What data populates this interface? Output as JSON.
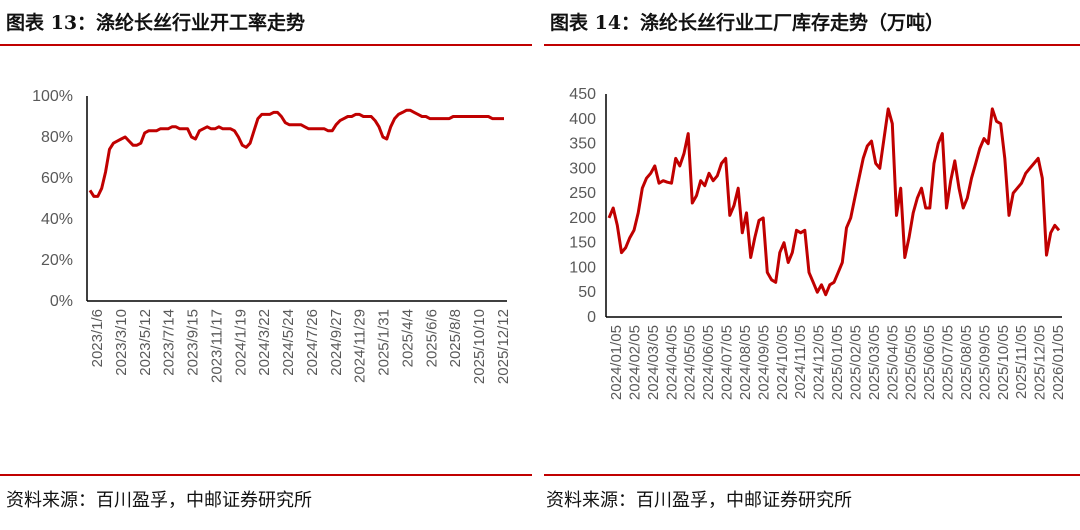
{
  "left": {
    "title": "图表 13：涤纶长丝行业开工率走势",
    "source": "资料来源：百川盈孚，中邮证券研究所"
  },
  "right": {
    "title": "图表 14：涤纶长丝行业工厂库存走势（万吨）",
    "source": "资料来源：百川盈孚，中邮证券研究所"
  },
  "colors": {
    "line": "#c00000",
    "axis": "#000000",
    "text": "#595959"
  },
  "chart_data": [
    {
      "type": "line",
      "title": "涤纶长丝行业开工率走势",
      "y_tick_labels": [
        "0%",
        "20%",
        "40%",
        "60%",
        "80%",
        "100%"
      ],
      "ylim": [
        0,
        100
      ],
      "x_tick_labels": [
        "2023/1/6",
        "2023/3/10",
        "2023/5/12",
        "2023/7/14",
        "2023/9/15",
        "2023/11/17",
        "2024/1/19",
        "2024/3/22",
        "2024/5/24",
        "2024/7/26",
        "2024/9/27",
        "2024/11/29",
        "2025/1/31",
        "2025/4/4",
        "2025/6/6",
        "2025/8/8",
        "2025/10/10",
        "2025/12/12"
      ],
      "series": [
        {
          "values": [
            54,
            51,
            51,
            55,
            63,
            74,
            77,
            78,
            79,
            80,
            78,
            76,
            76,
            77,
            82,
            83,
            83,
            83,
            84,
            84,
            84,
            85,
            85,
            84,
            84,
            84,
            80,
            79,
            83,
            84,
            85,
            84,
            84,
            85,
            84,
            84,
            84,
            83,
            80,
            76,
            75,
            77,
            83,
            89,
            91,
            91,
            91,
            92,
            92,
            90,
            87,
            86,
            86,
            86,
            86,
            85,
            84,
            84,
            84,
            84,
            84,
            83,
            83,
            86,
            88,
            89,
            90,
            90,
            91,
            91,
            90,
            90,
            90,
            88,
            85,
            80,
            79,
            85,
            89,
            91,
            92,
            93,
            93,
            92,
            91,
            90,
            90,
            89,
            89,
            89,
            89,
            89,
            89,
            90,
            90,
            90,
            90,
            90,
            90,
            90,
            90,
            90,
            90,
            89,
            89,
            89,
            89
          ]
        }
      ]
    },
    {
      "type": "line",
      "title": "涤纶长丝行业工厂库存走势（万吨）",
      "y_tick_labels": [
        "0",
        "50",
        "100",
        "150",
        "200",
        "250",
        "300",
        "350",
        "400",
        "450"
      ],
      "ylim": [
        0,
        450
      ],
      "x_tick_labels": [
        "2024/01/05",
        "2024/02/05",
        "2024/03/05",
        "2024/04/05",
        "2024/05/05",
        "2024/06/05",
        "2024/07/05",
        "2024/08/05",
        "2024/09/05",
        "2024/10/05",
        "2024/11/05",
        "2024/12/05",
        "2025/01/05",
        "2025/02/05",
        "2025/03/05",
        "2025/04/05",
        "2025/05/05",
        "2025/06/05",
        "2025/07/05",
        "2025/08/05",
        "2025/09/05",
        "2025/10/05",
        "2025/11/05",
        "2025/12/05",
        "2026/01/05"
      ],
      "series": [
        {
          "values": [
            200,
            220,
            185,
            130,
            140,
            160,
            175,
            210,
            260,
            280,
            290,
            305,
            270,
            275,
            272,
            270,
            320,
            305,
            330,
            370,
            230,
            245,
            275,
            265,
            290,
            275,
            285,
            310,
            320,
            205,
            225,
            260,
            170,
            210,
            120,
            160,
            195,
            200,
            90,
            75,
            70,
            130,
            150,
            110,
            130,
            175,
            170,
            175,
            90,
            70,
            50,
            65,
            45,
            65,
            70,
            90,
            110,
            180,
            200,
            240,
            280,
            320,
            345,
            355,
            310,
            300,
            360,
            420,
            390,
            205,
            260,
            120,
            160,
            210,
            240,
            260,
            220,
            220,
            310,
            350,
            370,
            220,
            275,
            315,
            260,
            220,
            240,
            280,
            310,
            340,
            360,
            350,
            420,
            395,
            390,
            320,
            205,
            250,
            260,
            270,
            290,
            300,
            310,
            320,
            280,
            125,
            170,
            185,
            175
          ]
        }
      ]
    }
  ]
}
